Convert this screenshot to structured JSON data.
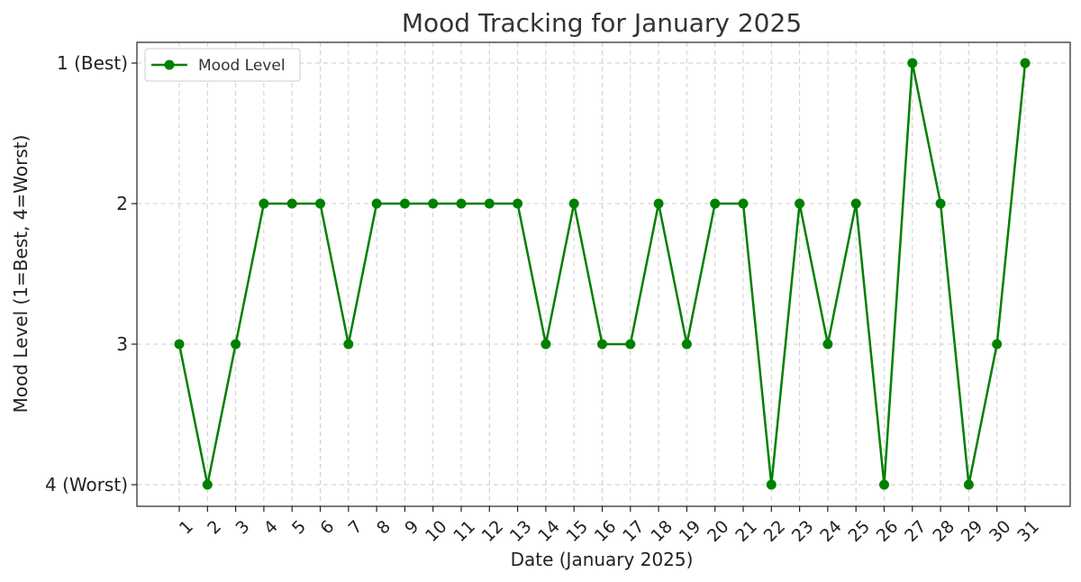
{
  "chart_data": {
    "type": "line",
    "title": "Mood Tracking for January 2025",
    "xlabel": "Date (January 2025)",
    "ylabel": "Mood Level (1=Best, 4=Worst)",
    "x": [
      1,
      2,
      3,
      4,
      5,
      6,
      7,
      8,
      9,
      10,
      11,
      12,
      13,
      14,
      15,
      16,
      17,
      18,
      19,
      20,
      21,
      22,
      23,
      24,
      25,
      26,
      27,
      28,
      29,
      30,
      31
    ],
    "x_tick_labels": [
      "1",
      "2",
      "3",
      "4",
      "5",
      "6",
      "7",
      "8",
      "9",
      "10",
      "11",
      "12",
      "13",
      "14",
      "15",
      "16",
      "17",
      "18",
      "19",
      "20",
      "21",
      "22",
      "23",
      "24",
      "25",
      "26",
      "27",
      "28",
      "29",
      "30",
      "31"
    ],
    "y_ticks": [
      1,
      2,
      3,
      4
    ],
    "y_tick_labels": [
      "1 (Best)",
      "2",
      "3",
      "4 (Worst)"
    ],
    "y_inverted": true,
    "ylim": [
      1,
      4
    ],
    "grid": true,
    "legend_position": "top-left",
    "series": [
      {
        "name": "Mood Level",
        "color": "#008000",
        "marker": "circle",
        "values": [
          3,
          4,
          3,
          2,
          2,
          2,
          3,
          2,
          2,
          2,
          2,
          2,
          2,
          3,
          2,
          3,
          3,
          2,
          3,
          2,
          2,
          4,
          2,
          3,
          2,
          4,
          1,
          2,
          4,
          3,
          1
        ]
      }
    ]
  }
}
